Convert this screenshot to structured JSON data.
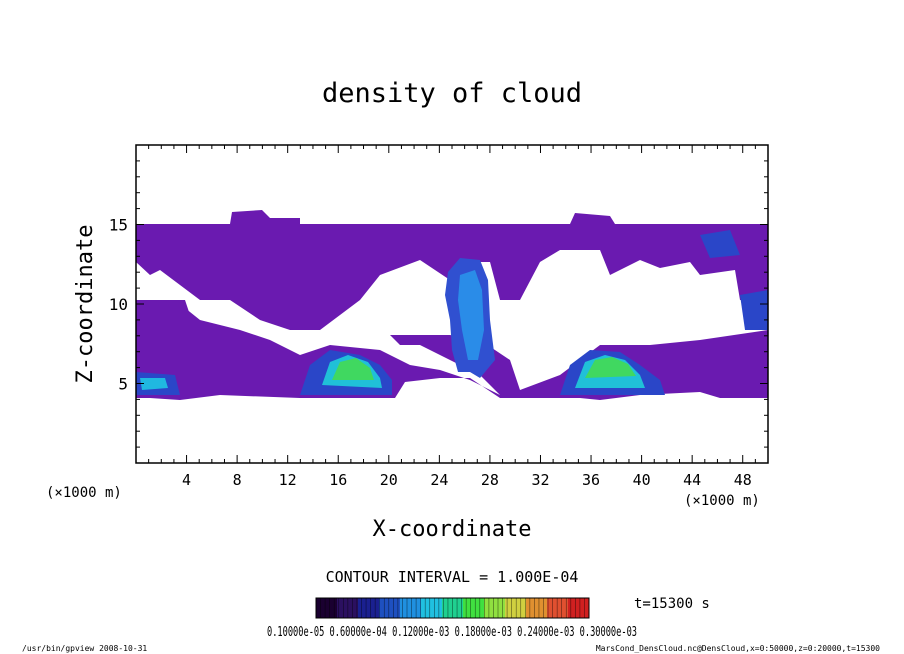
{
  "chart_data": {
    "type": "heatmap",
    "title": "density of cloud",
    "xlabel": "X-coordinate",
    "ylabel": "Z-coordinate",
    "x_unit": "(×1000 m)",
    "y_unit": "(×1000 m)",
    "xlim": [
      0,
      50
    ],
    "ylim": [
      0,
      20
    ],
    "x_ticks": [
      4,
      8,
      12,
      16,
      20,
      24,
      28,
      32,
      36,
      40,
      44,
      48
    ],
    "y_ticks": [
      5,
      10,
      15
    ],
    "contour_interval": "CONTOUR INTERVAL = 1.000E-04",
    "time_label": "t=15300 s",
    "colorbar_labels": "0.10000e-05 0.60000e-04 0.12000e-03 0.18000e-03 0.24000e-03 0.30000e-03",
    "colorbar_colors": [
      "#1a0030",
      "#2b1060",
      "#1a2090",
      "#1e50c0",
      "#2090e0",
      "#20c0e0",
      "#20d090",
      "#40e040",
      "#90e040",
      "#d0d040",
      "#e09030",
      "#e05030",
      "#d02020"
    ],
    "grid": false,
    "cloud_regions": [
      {
        "x": [
          0,
          50
        ],
        "z": [
          12,
          15
        ],
        "level": 1
      },
      {
        "x": [
          23,
          30
        ],
        "z": [
          6,
          14
        ],
        "level": 2
      },
      {
        "x": [
          15,
          19
        ],
        "z": [
          4.5,
          6.5
        ],
        "level": 3
      },
      {
        "x": [
          35,
          39
        ],
        "z": [
          4.5,
          6.5
        ],
        "level": 3
      }
    ]
  },
  "footer": {
    "left": "/usr/bin/gpview   2008-10-31",
    "right": "MarsCond_DensCloud.nc@DensCloud,x=0:50000,z=0:20000,t=15300"
  }
}
